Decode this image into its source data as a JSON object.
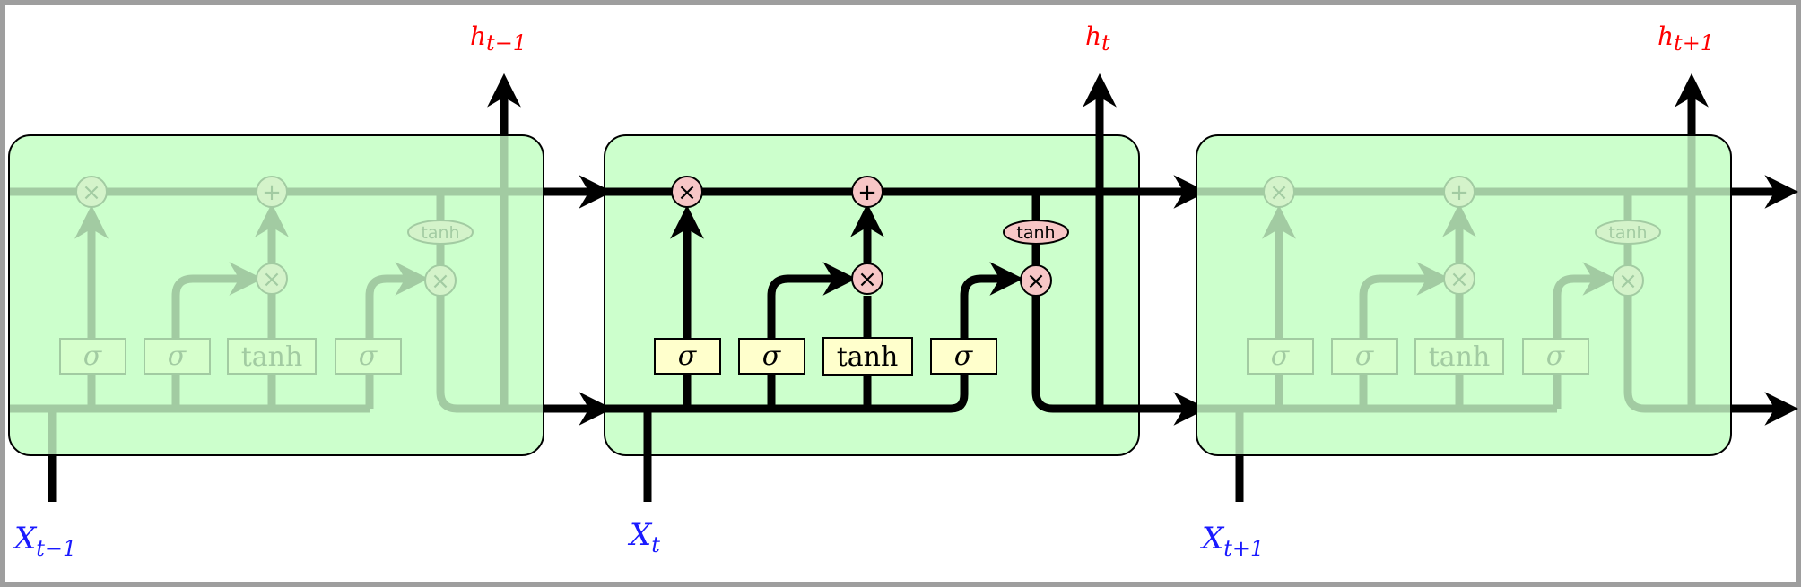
{
  "diagram": {
    "inputs": [
      {
        "base": "X",
        "sub": "t−1"
      },
      {
        "base": "X",
        "sub": "t"
      },
      {
        "base": "X",
        "sub": "t+1"
      }
    ],
    "outputs": [
      {
        "base": "h",
        "sub": "t−1"
      },
      {
        "base": "h",
        "sub": "t"
      },
      {
        "base": "h",
        "sub": "t+1"
      }
    ],
    "gates": [
      "σ",
      "σ",
      "tanh",
      "σ"
    ],
    "ops": {
      "multiply": "×",
      "add": "+"
    },
    "output_activation": "tanh",
    "colors": {
      "cell_fill": "#ccffcc",
      "gate_fill": "#ffffcc",
      "op_fill": "#f7c6c6",
      "input_label": "#1a1aff",
      "output_label": "#ff0000",
      "frame": "#9e9e9e"
    }
  }
}
